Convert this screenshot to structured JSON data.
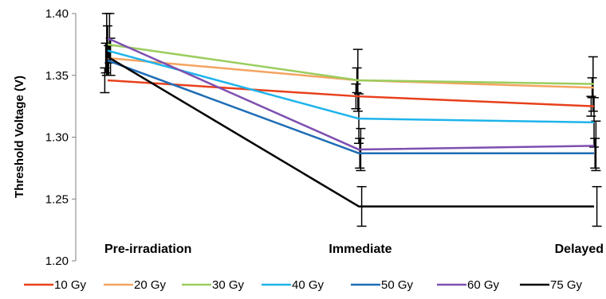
{
  "chart_data": {
    "type": "line",
    "title": "",
    "xlabel": "",
    "ylabel": "Threshold Voltage (V)",
    "categories": [
      "Pre-irradiation",
      "Immediate",
      "Delayed"
    ],
    "ylim": [
      1.2,
      1.4
    ],
    "yticks": [
      "1.20",
      "1.25",
      "1.30",
      "1.35",
      "1.40"
    ],
    "grid": false,
    "legend_position": "bottom",
    "series": [
      {
        "name": "10 Gy",
        "color": "#e8401c",
        "values": [
          1.346,
          1.333,
          1.325
        ],
        "error": [
          0.01,
          0.01,
          0.008
        ]
      },
      {
        "name": "20 Gy",
        "color": "#f4a460",
        "values": [
          1.364,
          1.346,
          1.34
        ],
        "error": [
          0.012,
          0.01,
          0.008
        ]
      },
      {
        "name": "30 Gy",
        "color": "#9acd5e",
        "values": [
          1.375,
          1.346,
          1.343
        ],
        "error": [
          0.025,
          0.025,
          0.022
        ]
      },
      {
        "name": "40 Gy",
        "color": "#1eb4ec",
        "values": [
          1.37,
          1.315,
          1.312
        ],
        "error": [
          0.02,
          0.02,
          0.02
        ]
      },
      {
        "name": "50 Gy",
        "color": "#1f6db5",
        "values": [
          1.362,
          1.287,
          1.287
        ],
        "error": [
          0.012,
          0.012,
          0.012
        ]
      },
      {
        "name": "60 Gy",
        "color": "#7e4fb0",
        "values": [
          1.38,
          1.29,
          1.293
        ],
        "error": [
          0.02,
          0.017,
          0.02
        ]
      },
      {
        "name": "75 Gy",
        "color": "#000000",
        "values": [
          1.365,
          1.244,
          1.244
        ],
        "error": [
          0.015,
          0.016,
          0.016
        ]
      }
    ]
  }
}
